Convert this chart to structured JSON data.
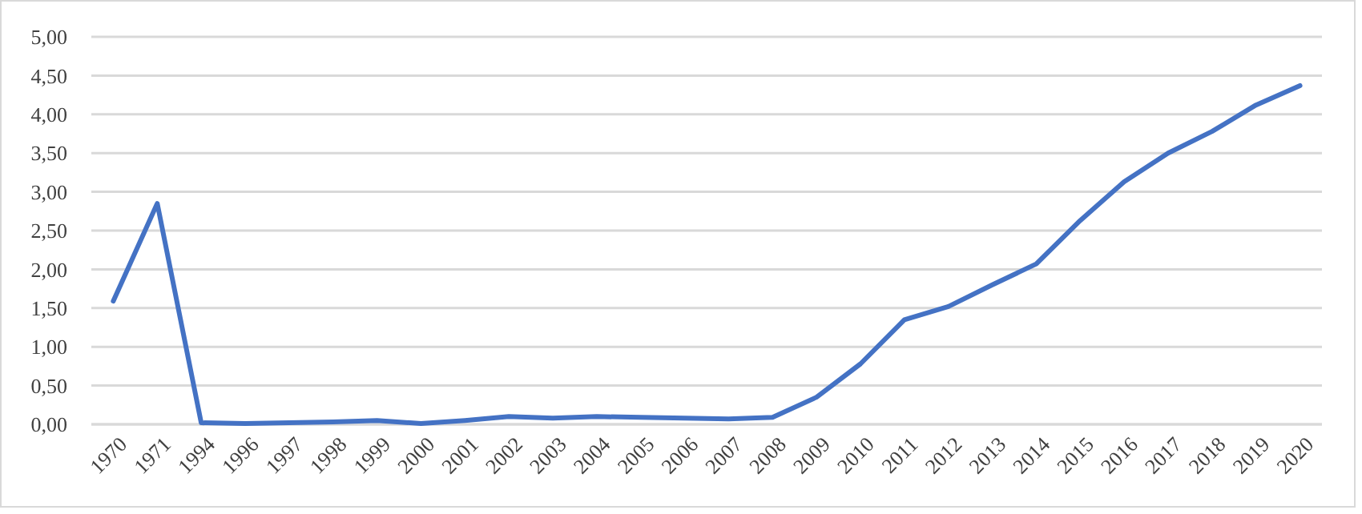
{
  "chart_data": {
    "type": "line",
    "categories": [
      "1970",
      "1971",
      "1994",
      "1996",
      "1997",
      "1998",
      "1999",
      "2000",
      "2001",
      "2002",
      "2003",
      "2004",
      "2005",
      "2006",
      "2007",
      "2008",
      "2009",
      "2010",
      "2011",
      "2012",
      "2013",
      "2014",
      "2015",
      "2016",
      "2017",
      "2018",
      "2019",
      "2020"
    ],
    "series": [
      {
        "color": "#4472c4",
        "values": [
          1.59,
          2.85,
          0.02,
          0.01,
          0.02,
          0.03,
          0.05,
          0.01,
          0.05,
          0.1,
          0.08,
          0.1,
          0.09,
          0.08,
          0.07,
          0.09,
          0.35,
          0.78,
          1.35,
          1.52,
          1.8,
          2.07,
          2.63,
          3.13,
          3.5,
          3.78,
          4.12,
          4.37
        ]
      }
    ],
    "ylim": [
      0,
      5
    ],
    "yticks": [
      {
        "value": 0,
        "label": "0,00"
      },
      {
        "value": 0.5,
        "label": "0,50"
      },
      {
        "value": 1,
        "label": "1,00"
      },
      {
        "value": 1.5,
        "label": "1,50"
      },
      {
        "value": 2,
        "label": "2,00"
      },
      {
        "value": 2.5,
        "label": "2,50"
      },
      {
        "value": 3,
        "label": "3,00"
      },
      {
        "value": 3.5,
        "label": "3,50"
      },
      {
        "value": 4,
        "label": "4,00"
      },
      {
        "value": 4.5,
        "label": "4,50"
      },
      {
        "value": 5,
        "label": "5,00"
      }
    ],
    "grid": "y",
    "marker": "none",
    "line_style": "solid"
  }
}
